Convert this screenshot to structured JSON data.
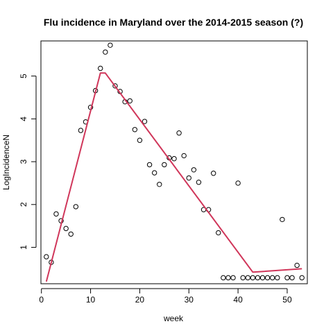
{
  "chart_data": {
    "type": "scatter",
    "title": "Flu incidence in Maryland over the 2014-2015 season (?)",
    "xlabel": "week",
    "ylabel": "LogIncidenceN",
    "xlim": [
      -0.1,
      54.1
    ],
    "ylim": [
      0.15,
      5.82
    ],
    "xticks": [
      0,
      10,
      20,
      30,
      40,
      50
    ],
    "yticks": [
      1,
      2,
      3,
      4,
      5
    ],
    "colors": {
      "points": "#000000",
      "fit_line": "#d0365a",
      "axes": "#000000"
    },
    "series": [
      {
        "type": "scatter",
        "marker": "open-circle",
        "x": [
          1,
          2,
          3,
          4,
          5,
          6,
          7,
          8,
          9,
          10,
          11,
          12,
          13,
          14,
          15,
          16,
          17,
          18,
          19,
          20,
          21,
          22,
          23,
          24,
          25,
          26,
          27,
          28,
          29,
          30,
          31,
          32,
          33,
          34,
          35,
          36,
          37,
          38,
          39,
          40,
          41,
          42,
          43,
          44,
          45,
          46,
          47,
          48,
          49,
          50,
          51,
          52,
          53
        ],
        "y": [
          0.78,
          0.65,
          1.78,
          1.62,
          1.44,
          1.31,
          1.95,
          3.73,
          3.93,
          4.27,
          4.66,
          5.18,
          5.56,
          5.72,
          4.77,
          4.64,
          4.4,
          4.42,
          3.75,
          3.5,
          3.94,
          2.93,
          2.74,
          2.47,
          2.93,
          3.09,
          3.07,
          3.67,
          3.14,
          2.62,
          2.81,
          2.52,
          1.88,
          1.88,
          2.73,
          1.34,
          0.29,
          0.29,
          0.29,
          2.5,
          0.29,
          0.29,
          0.29,
          0.29,
          0.29,
          0.29,
          0.29,
          0.29,
          1.65,
          0.29,
          0.29,
          0.58,
          0.29
        ]
      },
      {
        "type": "line",
        "x": [
          1,
          12,
          13,
          43,
          53
        ],
        "y": [
          0.2,
          5.07,
          5.07,
          0.42,
          0.5
        ]
      }
    ]
  }
}
